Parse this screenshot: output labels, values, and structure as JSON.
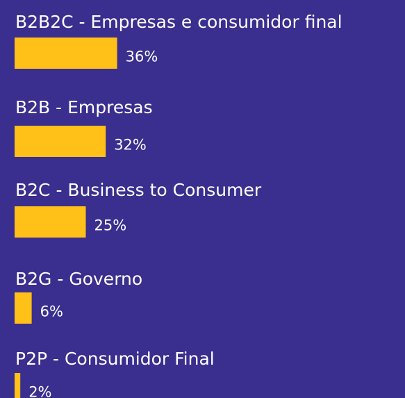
{
  "chart_data": {
    "type": "bar",
    "orientation": "horizontal",
    "categories": [
      "B2B2C - Empresas e consumidor final",
      "B2B - Empresas",
      "B2C - Business to Consumer",
      "B2G - Governo",
      "P2P - Consumidor Final"
    ],
    "values": [
      36,
      32,
      25,
      6,
      2
    ],
    "value_labels": [
      "36%",
      "32%",
      "25%",
      "6%",
      "2%"
    ],
    "color": "#ffc017"
  }
}
